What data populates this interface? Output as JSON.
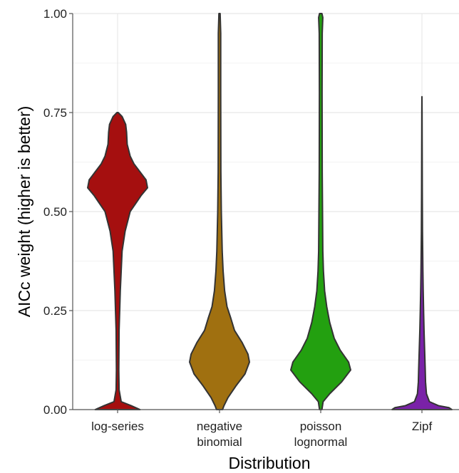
{
  "chart_data": {
    "type": "violin",
    "xlabel": "Distribution",
    "ylabel": "AICc weight (higher is better)",
    "ylim": [
      0,
      1
    ],
    "y_ticks": [
      {
        "value": 0.0,
        "label": "0.00"
      },
      {
        "value": 0.25,
        "label": "0.25"
      },
      {
        "value": 0.5,
        "label": "0.50"
      },
      {
        "value": 0.75,
        "label": "0.75"
      },
      {
        "value": 1.0,
        "label": "1.00"
      }
    ],
    "grid": true,
    "legend": "none",
    "categories": [
      {
        "name": "log-series",
        "label_lines": [
          "log-series"
        ],
        "color": "#a50f0f",
        "density": [
          [
            0.0,
            0.75
          ],
          [
            0.01,
            0.45
          ],
          [
            0.02,
            0.12
          ],
          [
            0.05,
            0.05
          ],
          [
            0.1,
            0.04
          ],
          [
            0.2,
            0.05
          ],
          [
            0.3,
            0.09
          ],
          [
            0.4,
            0.15
          ],
          [
            0.45,
            0.25
          ],
          [
            0.5,
            0.42
          ],
          [
            0.52,
            0.6
          ],
          [
            0.54,
            0.78
          ],
          [
            0.56,
            1.0
          ],
          [
            0.58,
            0.95
          ],
          [
            0.6,
            0.75
          ],
          [
            0.62,
            0.55
          ],
          [
            0.64,
            0.42
          ],
          [
            0.67,
            0.32
          ],
          [
            0.7,
            0.3
          ],
          [
            0.72,
            0.27
          ],
          [
            0.74,
            0.15
          ],
          [
            0.75,
            0.02
          ]
        ]
      },
      {
        "name": "negative binomial",
        "label_lines": [
          "negative",
          "binomial"
        ],
        "color": "#a07010",
        "density": [
          [
            0.0,
            0.1
          ],
          [
            0.01,
            0.15
          ],
          [
            0.03,
            0.28
          ],
          [
            0.06,
            0.55
          ],
          [
            0.09,
            0.85
          ],
          [
            0.12,
            1.0
          ],
          [
            0.14,
            0.95
          ],
          [
            0.17,
            0.75
          ],
          [
            0.2,
            0.5
          ],
          [
            0.23,
            0.38
          ],
          [
            0.26,
            0.25
          ],
          [
            0.3,
            0.17
          ],
          [
            0.35,
            0.12
          ],
          [
            0.4,
            0.09
          ],
          [
            0.5,
            0.06
          ],
          [
            0.6,
            0.045
          ],
          [
            0.8,
            0.04
          ],
          [
            0.95,
            0.04
          ],
          [
            1.0,
            0.02
          ]
        ]
      },
      {
        "name": "poisson lognormal",
        "label_lines": [
          "poisson",
          "lognormal"
        ],
        "color": "#23a010",
        "density": [
          [
            0.0,
            0.04
          ],
          [
            0.02,
            0.08
          ],
          [
            0.04,
            0.3
          ],
          [
            0.07,
            0.7
          ],
          [
            0.1,
            1.0
          ],
          [
            0.12,
            0.93
          ],
          [
            0.15,
            0.65
          ],
          [
            0.18,
            0.45
          ],
          [
            0.22,
            0.3
          ],
          [
            0.26,
            0.2
          ],
          [
            0.3,
            0.13
          ],
          [
            0.35,
            0.09
          ],
          [
            0.4,
            0.07
          ],
          [
            0.5,
            0.06
          ],
          [
            0.6,
            0.05
          ],
          [
            0.8,
            0.045
          ],
          [
            0.95,
            0.05
          ],
          [
            0.99,
            0.07
          ],
          [
            1.0,
            0.04
          ]
        ]
      },
      {
        "name": "Zipf",
        "label_lines": [
          "Zipf"
        ],
        "color": "#7a22a8",
        "density": [
          [
            0.0,
            1.0
          ],
          [
            0.005,
            0.9
          ],
          [
            0.01,
            0.55
          ],
          [
            0.02,
            0.25
          ],
          [
            0.04,
            0.15
          ],
          [
            0.07,
            0.12
          ],
          [
            0.1,
            0.11
          ],
          [
            0.15,
            0.09
          ],
          [
            0.2,
            0.07
          ],
          [
            0.25,
            0.055
          ],
          [
            0.3,
            0.042
          ],
          [
            0.35,
            0.032
          ],
          [
            0.4,
            0.025
          ],
          [
            0.45,
            0.018
          ],
          [
            0.5,
            0.015
          ],
          [
            0.55,
            0.012
          ],
          [
            0.6,
            0.01
          ],
          [
            0.65,
            0.008
          ],
          [
            0.7,
            0.006
          ],
          [
            0.75,
            0.004
          ],
          [
            0.79,
            0.001
          ]
        ]
      }
    ],
    "colors": {
      "outline": "#333333",
      "grid_major": "#e8e8e8",
      "grid_minor": "#f3f3f3",
      "axis": "#555555",
      "panel": "#ffffff"
    }
  }
}
